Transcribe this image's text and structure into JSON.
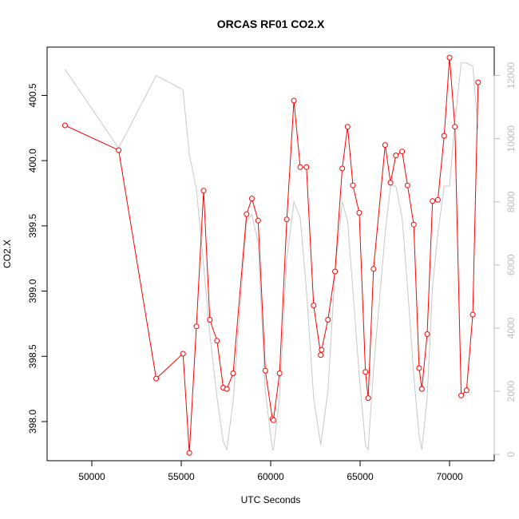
{
  "chart_data": {
    "type": "line",
    "title": "ORCAS RF01 CO2.X",
    "xlabel": "UTC Seconds",
    "ylabel": "CO2.X",
    "xlim": [
      47500,
      72500
    ],
    "ylim": [
      397.7,
      400.87
    ],
    "y2lim": [
      -200,
      12900
    ],
    "x_ticks": [
      50000,
      55000,
      60000,
      65000,
      70000
    ],
    "x_tick_labels": [
      "50000",
      "55000",
      "60000",
      "65000",
      "70000"
    ],
    "y_ticks": [
      398.0,
      398.5,
      399.0,
      399.5,
      400.0,
      400.5
    ],
    "y_tick_labels": [
      "398.0",
      "398.5",
      "399.0",
      "399.5",
      "400.0",
      "400.5"
    ],
    "y2_ticks": [
      0,
      2000,
      4000,
      6000,
      8000,
      10000,
      12000
    ],
    "y2_tick_labels": [
      "0",
      "2000",
      "4000",
      "6000",
      "8000",
      "10000",
      "12000"
    ],
    "colors": {
      "co2": "#ff0000",
      "altitude": "#c8c8c8",
      "right_axis": "#bdbdbd"
    },
    "series": [
      {
        "axis": "left",
        "style": "line+circles",
        "points": [
          [
            48500,
            400.27
          ],
          [
            51500,
            400.08
          ],
          [
            53600,
            398.33
          ],
          [
            55100,
            398.52
          ],
          [
            55450,
            397.76
          ],
          [
            55850,
            398.73
          ],
          [
            56250,
            399.77
          ],
          [
            56600,
            398.78
          ],
          [
            57000,
            398.62
          ],
          [
            57350,
            398.26
          ],
          [
            57550,
            398.25
          ],
          [
            57900,
            398.37
          ],
          [
            58650,
            399.59
          ],
          [
            58950,
            399.71
          ],
          [
            59300,
            399.54
          ],
          [
            59700,
            398.39
          ],
          [
            60100,
            398.02
          ],
          [
            60150,
            398.01
          ],
          [
            60500,
            398.37
          ],
          [
            60900,
            399.55
          ],
          [
            61300,
            400.46
          ],
          [
            61650,
            399.95
          ],
          [
            62000,
            399.95
          ],
          [
            62400,
            398.89
          ],
          [
            62800,
            398.51
          ],
          [
            62850,
            398.55
          ],
          [
            63200,
            398.78
          ],
          [
            63600,
            399.15
          ],
          [
            64000,
            399.94
          ],
          [
            64300,
            400.26
          ],
          [
            64600,
            399.81
          ],
          [
            64950,
            399.6
          ],
          [
            65300,
            398.38
          ],
          [
            65450,
            398.18
          ],
          [
            65750,
            399.17
          ],
          [
            66400,
            400.12
          ],
          [
            66700,
            399.83
          ],
          [
            67000,
            400.04
          ],
          [
            67350,
            400.07
          ],
          [
            67650,
            399.81
          ],
          [
            68000,
            399.51
          ],
          [
            68300,
            398.41
          ],
          [
            68450,
            398.25
          ],
          [
            68750,
            398.67
          ],
          [
            69050,
            399.69
          ],
          [
            69350,
            399.7
          ],
          [
            69700,
            400.19
          ],
          [
            70000,
            400.79
          ],
          [
            70300,
            400.26
          ],
          [
            70650,
            398.2
          ],
          [
            70950,
            398.24
          ],
          [
            71300,
            398.82
          ],
          [
            71600,
            400.6
          ]
        ]
      },
      {
        "axis": "right",
        "style": "line",
        "points": [
          [
            48500,
            12200
          ],
          [
            51500,
            9700
          ],
          [
            53600,
            12000
          ],
          [
            55100,
            11550
          ],
          [
            55450,
            9500
          ],
          [
            55850,
            8400
          ],
          [
            56250,
            6000
          ],
          [
            56600,
            3800
          ],
          [
            57000,
            1800
          ],
          [
            57350,
            400
          ],
          [
            57550,
            150
          ],
          [
            57900,
            1700
          ],
          [
            58650,
            7400
          ],
          [
            58950,
            7600
          ],
          [
            59300,
            6700
          ],
          [
            59700,
            2000
          ],
          [
            60100,
            150
          ],
          [
            60150,
            150
          ],
          [
            60500,
            1800
          ],
          [
            60900,
            6200
          ],
          [
            61300,
            8000
          ],
          [
            61650,
            7500
          ],
          [
            62000,
            5200
          ],
          [
            62400,
            1800
          ],
          [
            62800,
            300
          ],
          [
            63200,
            2000
          ],
          [
            63600,
            5800
          ],
          [
            64000,
            8000
          ],
          [
            64300,
            7400
          ],
          [
            64600,
            5200
          ],
          [
            64950,
            2500
          ],
          [
            65300,
            300
          ],
          [
            65450,
            150
          ],
          [
            65750,
            2700
          ],
          [
            66400,
            7000
          ],
          [
            66700,
            8500
          ],
          [
            67000,
            8500
          ],
          [
            67350,
            7500
          ],
          [
            67650,
            5300
          ],
          [
            68000,
            2500
          ],
          [
            68300,
            600
          ],
          [
            68450,
            150
          ],
          [
            68750,
            1800
          ],
          [
            69050,
            5300
          ],
          [
            69350,
            7000
          ],
          [
            69700,
            8500
          ],
          [
            70000,
            8500
          ],
          [
            70300,
            10500
          ],
          [
            70650,
            12400
          ],
          [
            70950,
            12400
          ],
          [
            71300,
            12300
          ],
          [
            71600,
            10300
          ]
        ]
      }
    ]
  }
}
